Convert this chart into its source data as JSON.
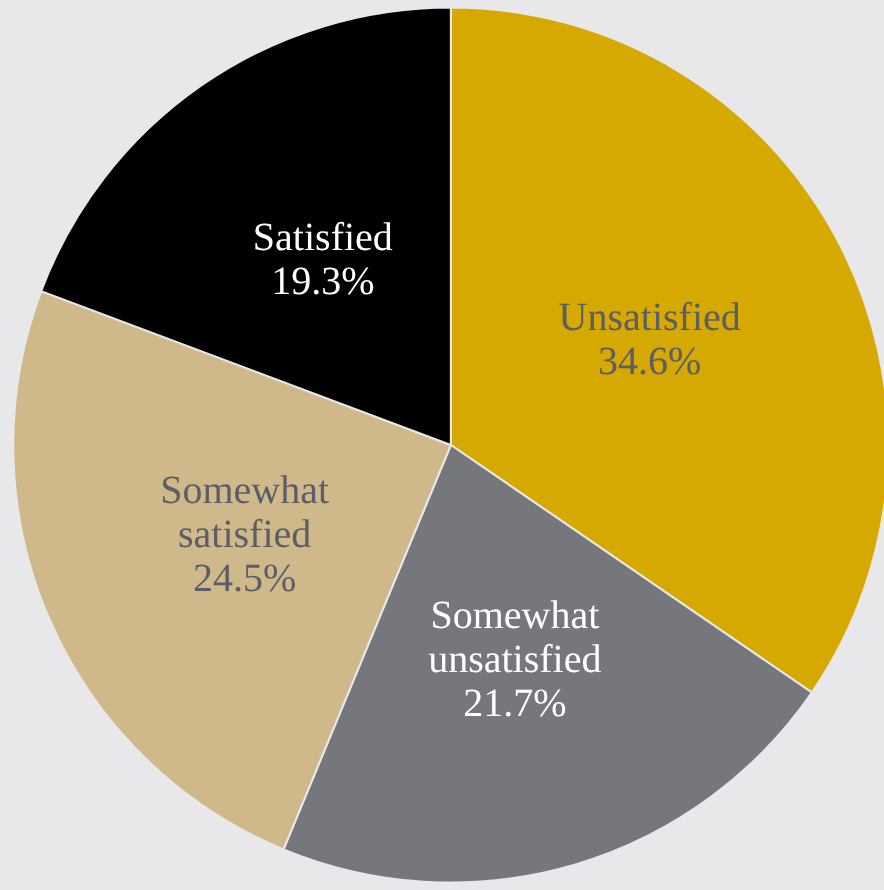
{
  "chart_data": {
    "type": "pie",
    "categories": [
      "Unsatisfied",
      "Somewhat unsatisfied",
      "Somewhat satisfied",
      "Satisfied"
    ],
    "values": [
      34.6,
      21.7,
      24.5,
      19.3
    ],
    "colors": [
      "#d6a900",
      "#75777c",
      "#cfb98b",
      "#000000"
    ],
    "value_labels": [
      "34.6%",
      "21.7%",
      "24.5%",
      "19.3%"
    ],
    "legend": false
  }
}
